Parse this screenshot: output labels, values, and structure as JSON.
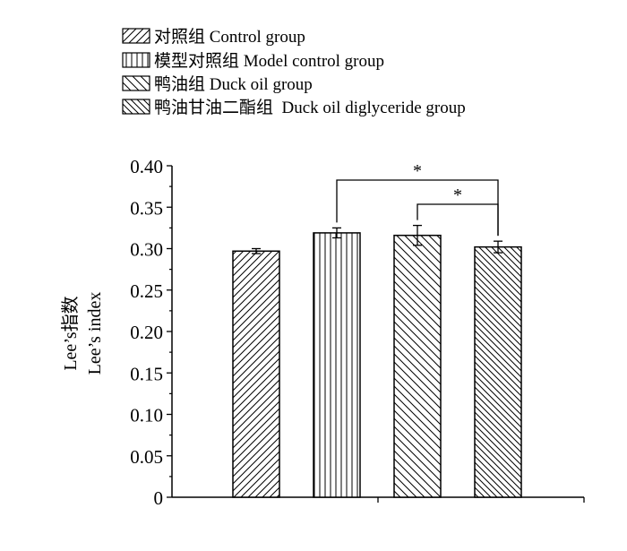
{
  "chart_data": {
    "type": "bar",
    "categories": [
      "对照组 Control group",
      "模型对照组 Model control group",
      "鸭油组 Duck oil group",
      "鸭油甘油二酯组  Duck oil diglyceride group"
    ],
    "series": [
      {
        "values": [
          0.297,
          0.319,
          0.316,
          0.302
        ],
        "errors": [
          0.003,
          0.006,
          0.012,
          0.007
        ]
      }
    ],
    "ylabel": [
      "Lee’s指数",
      "Lee’s index"
    ],
    "ylim": [
      0,
      0.4
    ],
    "yticks": [
      "0",
      "0.05",
      "0.10",
      "0.15",
      "0.20",
      "0.25",
      "0.30",
      "0.35",
      "0.40"
    ],
    "legend_position": "top-left",
    "legend_patterns": [
      "diagonal-up",
      "vertical",
      "diagonal-down",
      "diagonal-down-dense"
    ],
    "grid": false,
    "significance": [
      {
        "from": 1,
        "to": 3,
        "label": "*"
      },
      {
        "from": 2,
        "to": 3,
        "label": "*"
      }
    ]
  }
}
